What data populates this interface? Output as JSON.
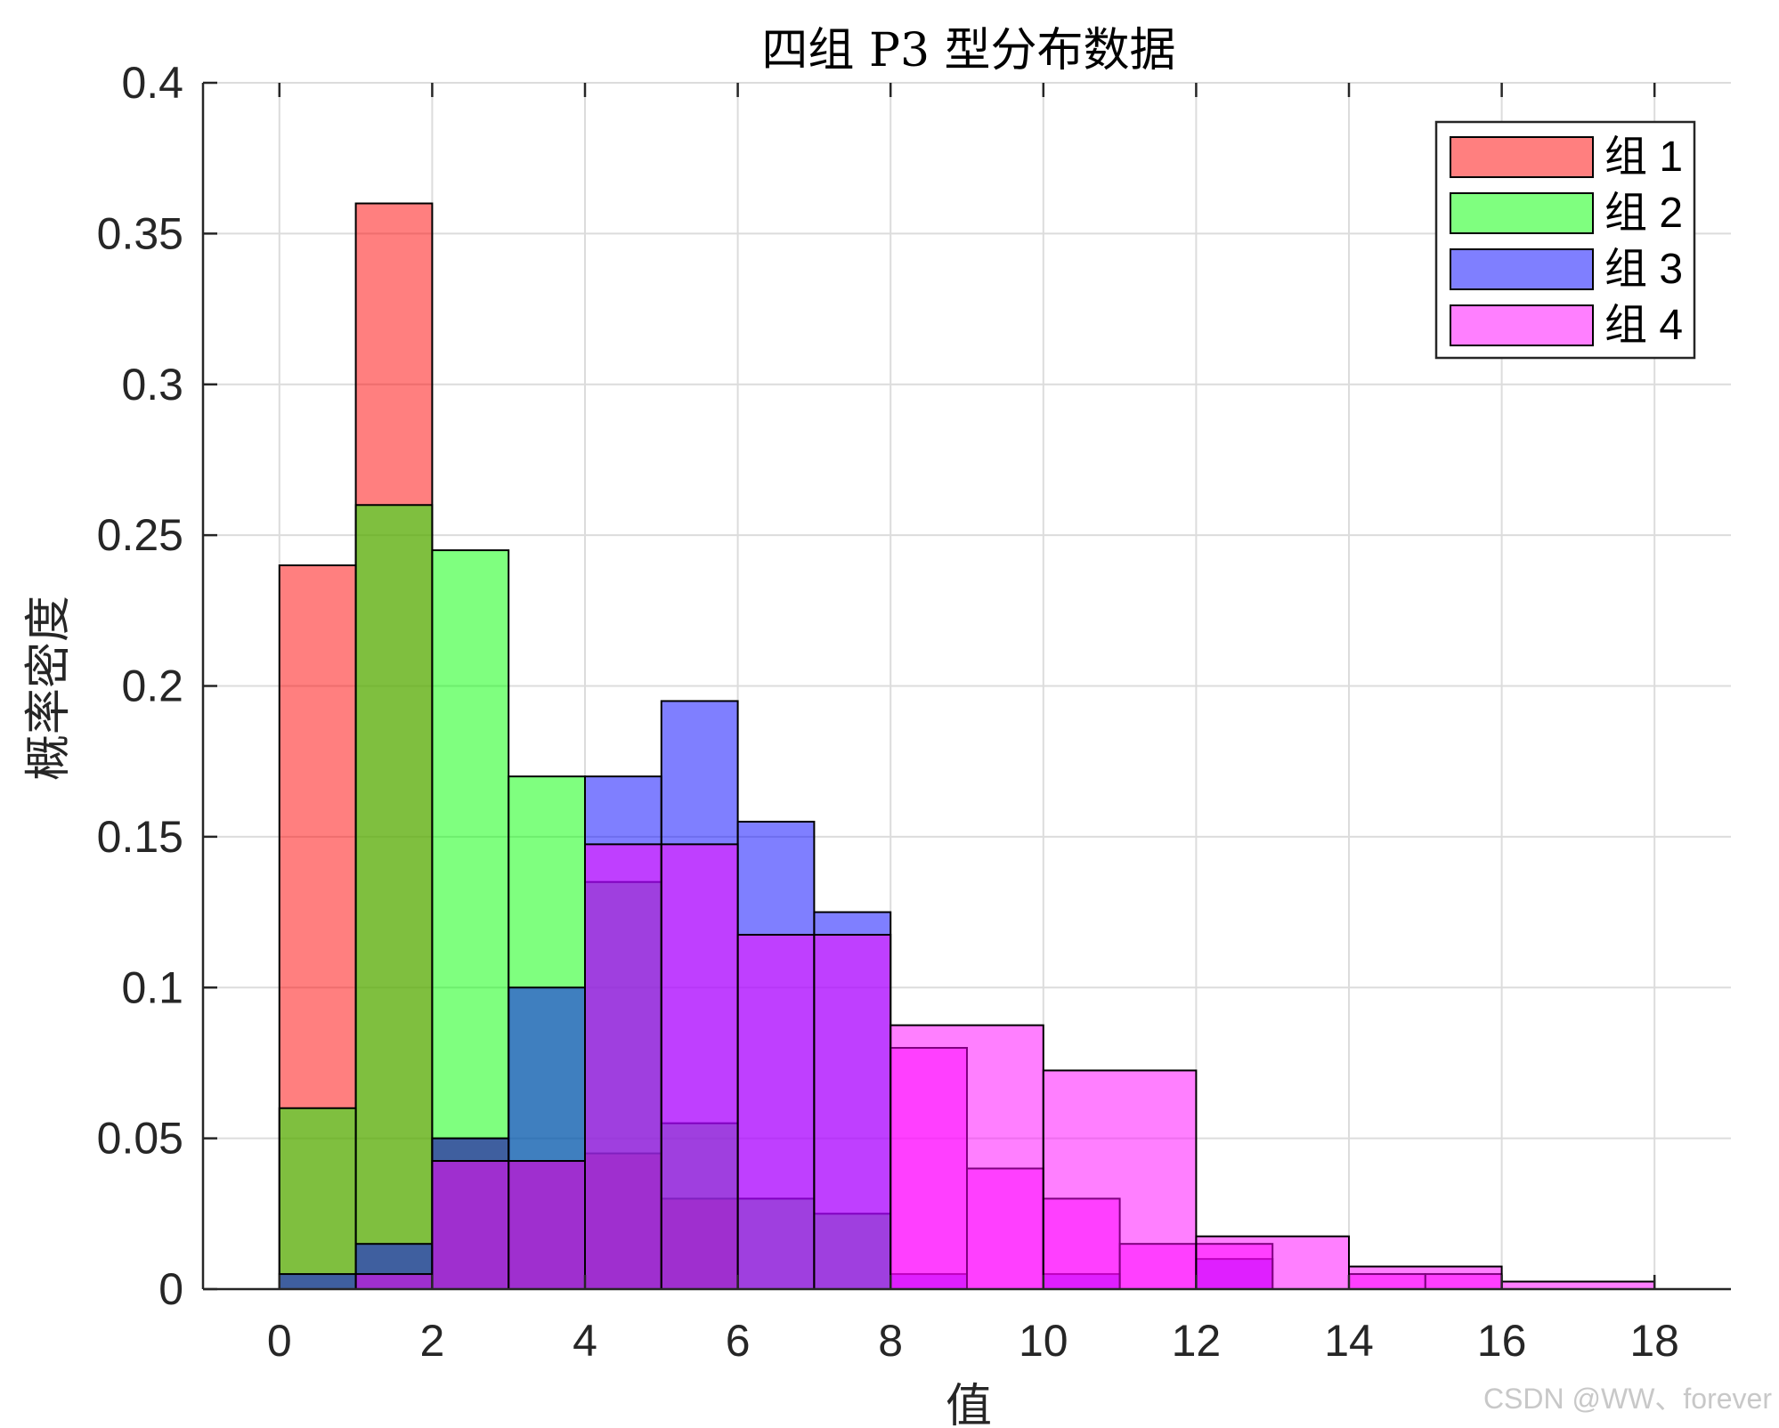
{
  "chart_data": {
    "type": "bar",
    "title": "四组 P3 型分布数据",
    "xlabel": "值",
    "ylabel": "概率密度",
    "xlim": [
      -1,
      19
    ],
    "ylim": [
      0,
      0.4
    ],
    "xticks": [
      "0",
      "2",
      "4",
      "6",
      "8",
      "10",
      "12",
      "14",
      "16",
      "18"
    ],
    "yticks": [
      "0",
      "0.05",
      "0.1",
      "0.15",
      "0.2",
      "0.25",
      "0.3",
      "0.35",
      "0.4"
    ],
    "grid": true,
    "legend_position": "top-right",
    "series": [
      {
        "name": "组 1",
        "color": "#ff0000",
        "bin_edges": [
          0,
          1,
          2,
          3,
          4,
          5,
          6
        ],
        "values": [
          0.24,
          0.36,
          0.05,
          0.0425,
          0.045,
          0.03
        ]
      },
      {
        "name": "组 2",
        "color": "#00ff00",
        "bin_edges": [
          0,
          1,
          2,
          3,
          4,
          5,
          6,
          7,
          8
        ],
        "values": [
          0.06,
          0.26,
          0.245,
          0.17,
          0.135,
          0.055,
          0.03,
          0.025
        ]
      },
      {
        "name": "组 3",
        "color": "#0000ff",
        "bin_edges": [
          0,
          1,
          2,
          3,
          4,
          5,
          6,
          7,
          8,
          9,
          10,
          11,
          12,
          13
        ],
        "values": [
          0.005,
          0.015,
          0.05,
          0.1,
          0.17,
          0.195,
          0.155,
          0.125,
          0.005,
          0.0,
          0.005,
          0.0,
          0.01
        ]
      },
      {
        "name": "组 4",
        "color": "#ff00ff",
        "bin_edges": [
          1,
          2,
          3,
          4,
          5,
          6,
          7,
          8,
          9,
          10,
          11,
          12,
          13,
          14,
          15,
          16,
          17,
          18
        ],
        "values": [
          0.005,
          0.0425,
          0.0425,
          0.1475,
          0.1475,
          0.1175,
          0.1175,
          0.08,
          0.04,
          0.03,
          0.015,
          0.015,
          0.0,
          0.005,
          0.005,
          0.0,
          0.0
        ]
      },
      {
        "name": "",
        "color": "#ff00ff",
        "bin_edges": [
          8,
          10,
          12,
          14,
          16,
          18
        ],
        "values": [
          0.0875,
          0.0725,
          0.0175,
          0.0075,
          0.0025
        ]
      }
    ]
  },
  "watermark": "CSDN @WW、forever"
}
